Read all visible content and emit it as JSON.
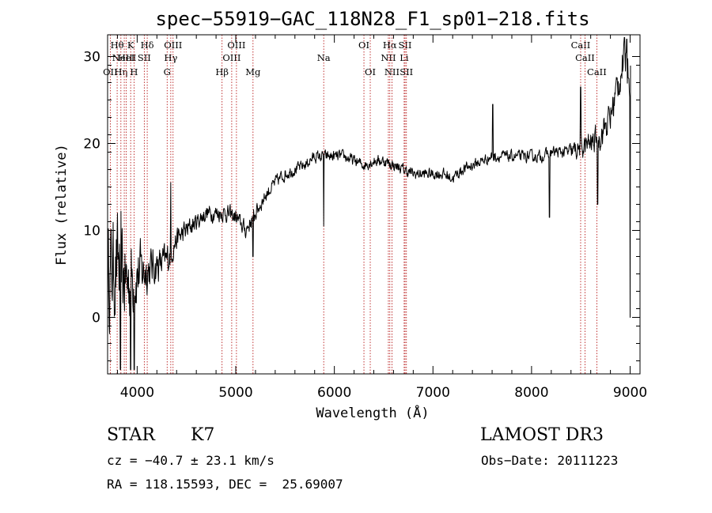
{
  "chart_data": {
    "type": "line",
    "title": "spec−55919−GAC_118N28_F1_sp01−218.fits",
    "xlabel": "Wavelength (Å)",
    "ylabel": "Flux (relative)",
    "xlim": [
      3700,
      9100
    ],
    "ylim": [
      -6.5,
      32.5
    ],
    "x_ticks": [
      4000,
      5000,
      6000,
      7000,
      8000,
      9000
    ],
    "y_ticks": [
      0,
      10,
      20,
      30
    ],
    "x_tick_labels": [
      "4000",
      "5000",
      "6000",
      "7000",
      "8000",
      "9000"
    ],
    "y_tick_labels": [
      "0",
      "10",
      "20",
      "30"
    ],
    "series": [
      {
        "name": "flux",
        "anchor_x": [
          3700,
          3800,
          3900,
          4000,
          4100,
          4200,
          4300,
          4400,
          4500,
          4600,
          4700,
          4800,
          4900,
          5000,
          5100,
          5200,
          5300,
          5400,
          5500,
          5600,
          5700,
          5800,
          5900,
          6000,
          6100,
          6200,
          6300,
          6400,
          6500,
          6600,
          6700,
          6800,
          6900,
          7000,
          7100,
          7200,
          7300,
          7400,
          7500,
          7600,
          7700,
          7800,
          7900,
          8000,
          8100,
          8200,
          8300,
          8400,
          8500,
          8600,
          8700,
          8800,
          8900,
          8950,
          9000
        ],
        "anchor_y": [
          5,
          6,
          4,
          5,
          5.5,
          6,
          6.5,
          9,
          10,
          11,
          12,
          12,
          12,
          11.5,
          10,
          12,
          14,
          15.5,
          16.5,
          17,
          17.5,
          18.5,
          18.5,
          18.5,
          18.5,
          18,
          17.5,
          18,
          18,
          17.5,
          17,
          16.5,
          16.5,
          16.5,
          16.5,
          16,
          17,
          17.5,
          18,
          18.5,
          18.5,
          18.5,
          18.5,
          18.5,
          18.5,
          19,
          19,
          19,
          19.5,
          20,
          21,
          23,
          28,
          30,
          28
        ],
        "noise_amplitude": [
          9,
          9,
          8,
          6,
          4,
          3,
          3,
          2,
          2,
          1.5,
          1.5,
          1.5,
          1.5,
          1.5,
          1.5,
          1.5,
          1.2,
          1.2,
          1.2,
          1,
          1,
          1,
          1,
          1,
          1,
          1,
          1,
          1,
          1,
          1,
          1,
          1,
          1,
          1,
          1,
          1,
          1,
          1,
          1,
          1,
          1,
          1,
          1,
          1,
          1,
          1,
          1,
          1.5,
          2,
          2,
          2.5,
          3,
          3.5,
          3.5,
          3.5
        ],
        "dips": [
          {
            "x": 3830,
            "y": -6
          },
          {
            "x": 3935,
            "y": -6
          },
          {
            "x": 3970,
            "y": -6
          },
          {
            "x": 5175,
            "y": 7
          },
          {
            "x": 5892,
            "y": 10.5
          },
          {
            "x": 8183,
            "y": 11.5
          },
          {
            "x": 8670,
            "y": 13
          },
          {
            "x": 9000,
            "y": 0
          }
        ],
        "spikes": [
          {
            "x": 4340,
            "y": 15.5
          },
          {
            "x": 7605,
            "y": 24.5
          },
          {
            "x": 8498,
            "y": 26.5
          },
          {
            "x": 8965,
            "y": 32
          }
        ]
      }
    ],
    "spectral_lines": [
      {
        "x": 3727,
        "label": "OII",
        "row": 3
      },
      {
        "x": 3797,
        "label": "Hθ",
        "row": 1
      },
      {
        "x": 3835,
        "label": "Hη",
        "row": 3
      },
      {
        "x": 3869,
        "label": "NeIII",
        "row": 2
      },
      {
        "x": 3889,
        "label": "HeI",
        "row": 2
      },
      {
        "x": 3934,
        "label": "K",
        "row": 1
      },
      {
        "x": 3968,
        "label": "H",
        "row": 3
      },
      {
        "x": 4072,
        "label": "SII",
        "row": 2
      },
      {
        "x": 4102,
        "label": "Hδ",
        "row": 1
      },
      {
        "x": 4304,
        "label": "G",
        "row": 3
      },
      {
        "x": 4341,
        "label": "Hγ",
        "row": 2
      },
      {
        "x": 4364,
        "label": "OIII",
        "row": 1
      },
      {
        "x": 4861,
        "label": "Hβ",
        "row": 3
      },
      {
        "x": 4959,
        "label": "OIII",
        "row": 2
      },
      {
        "x": 5007,
        "label": "OIII",
        "row": 1
      },
      {
        "x": 5175,
        "label": "Mg",
        "row": 3
      },
      {
        "x": 5892,
        "label": "Na",
        "row": 2
      },
      {
        "x": 6300,
        "label": "OI",
        "row": 1
      },
      {
        "x": 6364,
        "label": "OI",
        "row": 3
      },
      {
        "x": 6548,
        "label": "NII",
        "row": 2
      },
      {
        "x": 6563,
        "label": "Hα",
        "row": 1
      },
      {
        "x": 6584,
        "label": "NII",
        "row": 3
      },
      {
        "x": 6708,
        "label": "Li",
        "row": 2
      },
      {
        "x": 6717,
        "label": "SII",
        "row": 1
      },
      {
        "x": 6731,
        "label": "SII",
        "row": 3
      },
      {
        "x": 8498,
        "label": "CaII",
        "row": 1
      },
      {
        "x": 8542,
        "label": "CaII",
        "row": 2
      },
      {
        "x": 8662,
        "label": "CaII",
        "row": 3
      }
    ]
  },
  "info": {
    "object_type": "STAR",
    "subclass": "K7",
    "survey": "LAMOST DR3",
    "redshift": "cz = −40.7 ± 23.1 km/s",
    "obs_date": "Obs−Date: 20111223",
    "coords": "RA = 118.15593, DEC =  25.69007"
  }
}
